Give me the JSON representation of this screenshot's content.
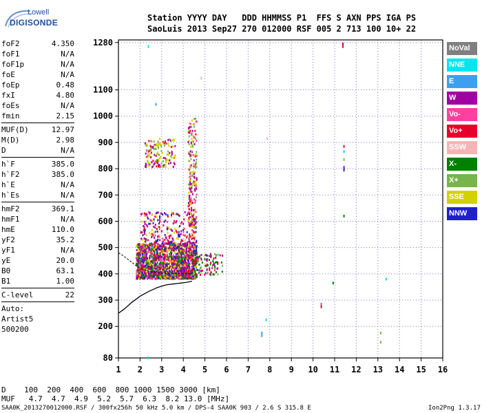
{
  "logo": {
    "line1": "Lowell",
    "line2": "DIGISONDE"
  },
  "header": {
    "line1": "Station YYYY DAY   DDD HHMMSS P1  FFS S AXN PPS IGA PS",
    "line2": "SaoLuis 2013 Sep27 270 012000 RSF 005 2 713 100 10+ 22"
  },
  "params": [
    {
      "label": "foF2",
      "value": "4.350"
    },
    {
      "label": "foF1",
      "value": "N/A"
    },
    {
      "label": "foF1p",
      "value": "N/A"
    },
    {
      "label": "foE",
      "value": "N/A"
    },
    {
      "label": "foEp",
      "value": "0.48"
    },
    {
      "label": "fxI",
      "value": "4.80"
    },
    {
      "label": "foEs",
      "value": "N/A"
    },
    {
      "label": "fmin",
      "value": "2.15",
      "sep_after": true
    },
    {
      "label": "MUF(D)",
      "value": "12.97"
    },
    {
      "label": "M(D)",
      "value": "2.98"
    },
    {
      "label": "D",
      "value": "N/A",
      "sep_after": true
    },
    {
      "label": "h`F",
      "value": "385.0"
    },
    {
      "label": "h`F2",
      "value": "385.0"
    },
    {
      "label": "h`E",
      "value": "N/A"
    },
    {
      "label": "h`Es",
      "value": "N/A",
      "sep_after": true
    },
    {
      "label": "hmF2",
      "value": "369.1"
    },
    {
      "label": "hmF1",
      "value": "N/A"
    },
    {
      "label": "hmE",
      "value": "110.0"
    },
    {
      "label": "yF2",
      "value": "35.2"
    },
    {
      "label": "yF1",
      "value": "N/A"
    },
    {
      "label": "yE",
      "value": "20.0"
    },
    {
      "label": "B0",
      "value": "63.1"
    },
    {
      "label": "B1",
      "value": "1.00",
      "sep_after": true
    },
    {
      "label": "C-level",
      "value": "22",
      "sep_after": true
    },
    {
      "label": "Auto:",
      "value": ""
    },
    {
      "label": "Artist5",
      "value": ""
    },
    {
      "label": "500200",
      "value": ""
    }
  ],
  "legend": [
    {
      "label": "NoVal",
      "color": "#808080"
    },
    {
      "label": "NNE",
      "color": "#00e5ee"
    },
    {
      "label": "E",
      "color": "#3ca0ee"
    },
    {
      "label": "W",
      "color": "#a000a0"
    },
    {
      "label": "Vo-",
      "color": "#ff40a0"
    },
    {
      "label": "Vo+",
      "color": "#e8002a"
    },
    {
      "label": "SSW",
      "color": "#f4b4b4"
    },
    {
      "label": "X-",
      "color": "#008000"
    },
    {
      "label": "X+",
      "color": "#78b44c"
    },
    {
      "label": "SSE",
      "color": "#d2d200"
    },
    {
      "label": "NNW",
      "color": "#2020c8"
    }
  ],
  "footer": {
    "line1": "D    100  200  400  600  800 1000 1500 3000 [km]",
    "line2": "MUF   4.7  4.7  4.9  5.2  5.7  6.3  8.2 13.0 [MHz]",
    "line3": "SAA0K_2013270012000.RSF / 300fx256h 50 kHz 5.0 km / DPS-4 SAA0K 903 / 2.6 S 315.8 E",
    "version": "Ion2Png 1.3.17"
  },
  "chart_data": {
    "type": "scatter",
    "xlim": [
      1,
      16
    ],
    "ylim": [
      80,
      1290
    ],
    "x_ticks": [
      1,
      2,
      3,
      4,
      5,
      6,
      7,
      8,
      9,
      10,
      11,
      12,
      13,
      14,
      15,
      16
    ],
    "y_ticks": [
      80,
      200,
      300,
      400,
      500,
      600,
      700,
      800,
      900,
      1000,
      1100,
      1280
    ],
    "xlabel": "",
    "ylabel": "",
    "grid": true,
    "clusters": [
      {
        "x": [
          1.8,
          4.6
        ],
        "y": [
          385,
          520
        ],
        "n": 1800,
        "colors": [
          "#e8002a",
          "#a000a0",
          "#ff40a0",
          "#d2d200",
          "#2020c8",
          "#008000"
        ]
      },
      {
        "x": [
          2.0,
          4.6
        ],
        "y": [
          520,
          640
        ],
        "n": 250,
        "colors": [
          "#a000a0",
          "#e8002a",
          "#ff40a0",
          "#d2d200",
          "#2020c8"
        ]
      },
      {
        "x": [
          4.2,
          4.6
        ],
        "y": [
          580,
          1000
        ],
        "n": 220,
        "colors": [
          "#d2d200",
          "#a000a0",
          "#e8002a",
          "#78b44c",
          "#ff40a0"
        ]
      },
      {
        "x": [
          2.2,
          3.6
        ],
        "y": [
          810,
          920
        ],
        "n": 150,
        "colors": [
          "#d2d200",
          "#d2d200",
          "#a000a0",
          "#e8002a",
          "#78b44c"
        ]
      },
      {
        "x": [
          4.5,
          5.8
        ],
        "y": [
          400,
          480
        ],
        "n": 90,
        "colors": [
          "#78b44c",
          "#008000",
          "#a000a0",
          "#e8002a"
        ]
      }
    ],
    "points": [
      {
        "x": 2.35,
        "y": 1270,
        "color": "#00e5ee"
      },
      {
        "x": 2.7,
        "y": 1050,
        "color": "#3ca0ee"
      },
      {
        "x": 4.8,
        "y": 1150,
        "color": "#f4b4b4"
      },
      {
        "x": 11.35,
        "y": 1280,
        "color": "#a000a0"
      },
      {
        "x": 11.35,
        "y": 1270,
        "color": "#e8002a"
      },
      {
        "x": 11.4,
        "y": 890,
        "color": "#e8002a"
      },
      {
        "x": 11.4,
        "y": 870,
        "color": "#00e5ee"
      },
      {
        "x": 11.4,
        "y": 840,
        "color": "#78b44c"
      },
      {
        "x": 11.4,
        "y": 810,
        "color": "#a000a0"
      },
      {
        "x": 11.4,
        "y": 800,
        "color": "#2020c8"
      },
      {
        "x": 11.4,
        "y": 625,
        "color": "#008000"
      },
      {
        "x": 7.85,
        "y": 920,
        "color": "#f4b4b4"
      },
      {
        "x": 10.35,
        "y": 290,
        "color": "#ff40a0"
      },
      {
        "x": 10.35,
        "y": 280,
        "color": "#e8002a"
      },
      {
        "x": 7.6,
        "y": 180,
        "color": "#3ca0ee"
      },
      {
        "x": 7.6,
        "y": 170,
        "color": "#3ca0ee"
      },
      {
        "x": 7.8,
        "y": 230,
        "color": "#00e5ee"
      },
      {
        "x": 10.9,
        "y": 370,
        "color": "#008000"
      },
      {
        "x": 13.35,
        "y": 385,
        "color": "#00e5ee"
      },
      {
        "x": 13.1,
        "y": 180,
        "color": "#78b44c"
      },
      {
        "x": 13.1,
        "y": 145,
        "color": "#78b44c"
      },
      {
        "x": 2.35,
        "y": 85,
        "color": "#00e5ee"
      }
    ],
    "trace": {
      "x": [
        1.0,
        1.3,
        1.6,
        2.0,
        2.4,
        2.8,
        3.2,
        3.6,
        3.9,
        4.1,
        4.3,
        4.4
      ],
      "y": [
        250,
        268,
        290,
        315,
        333,
        348,
        358,
        362,
        365,
        367,
        370,
        372
      ]
    },
    "trace_upper": {
      "x": [
        1.0,
        1.2,
        1.4,
        1.6,
        1.8,
        2.0,
        2.5,
        3.0,
        3.5,
        4.0,
        4.35
      ],
      "y": [
        480,
        470,
        458,
        445,
        432,
        420,
        408,
        403,
        402,
        402,
        401
      ]
    }
  }
}
